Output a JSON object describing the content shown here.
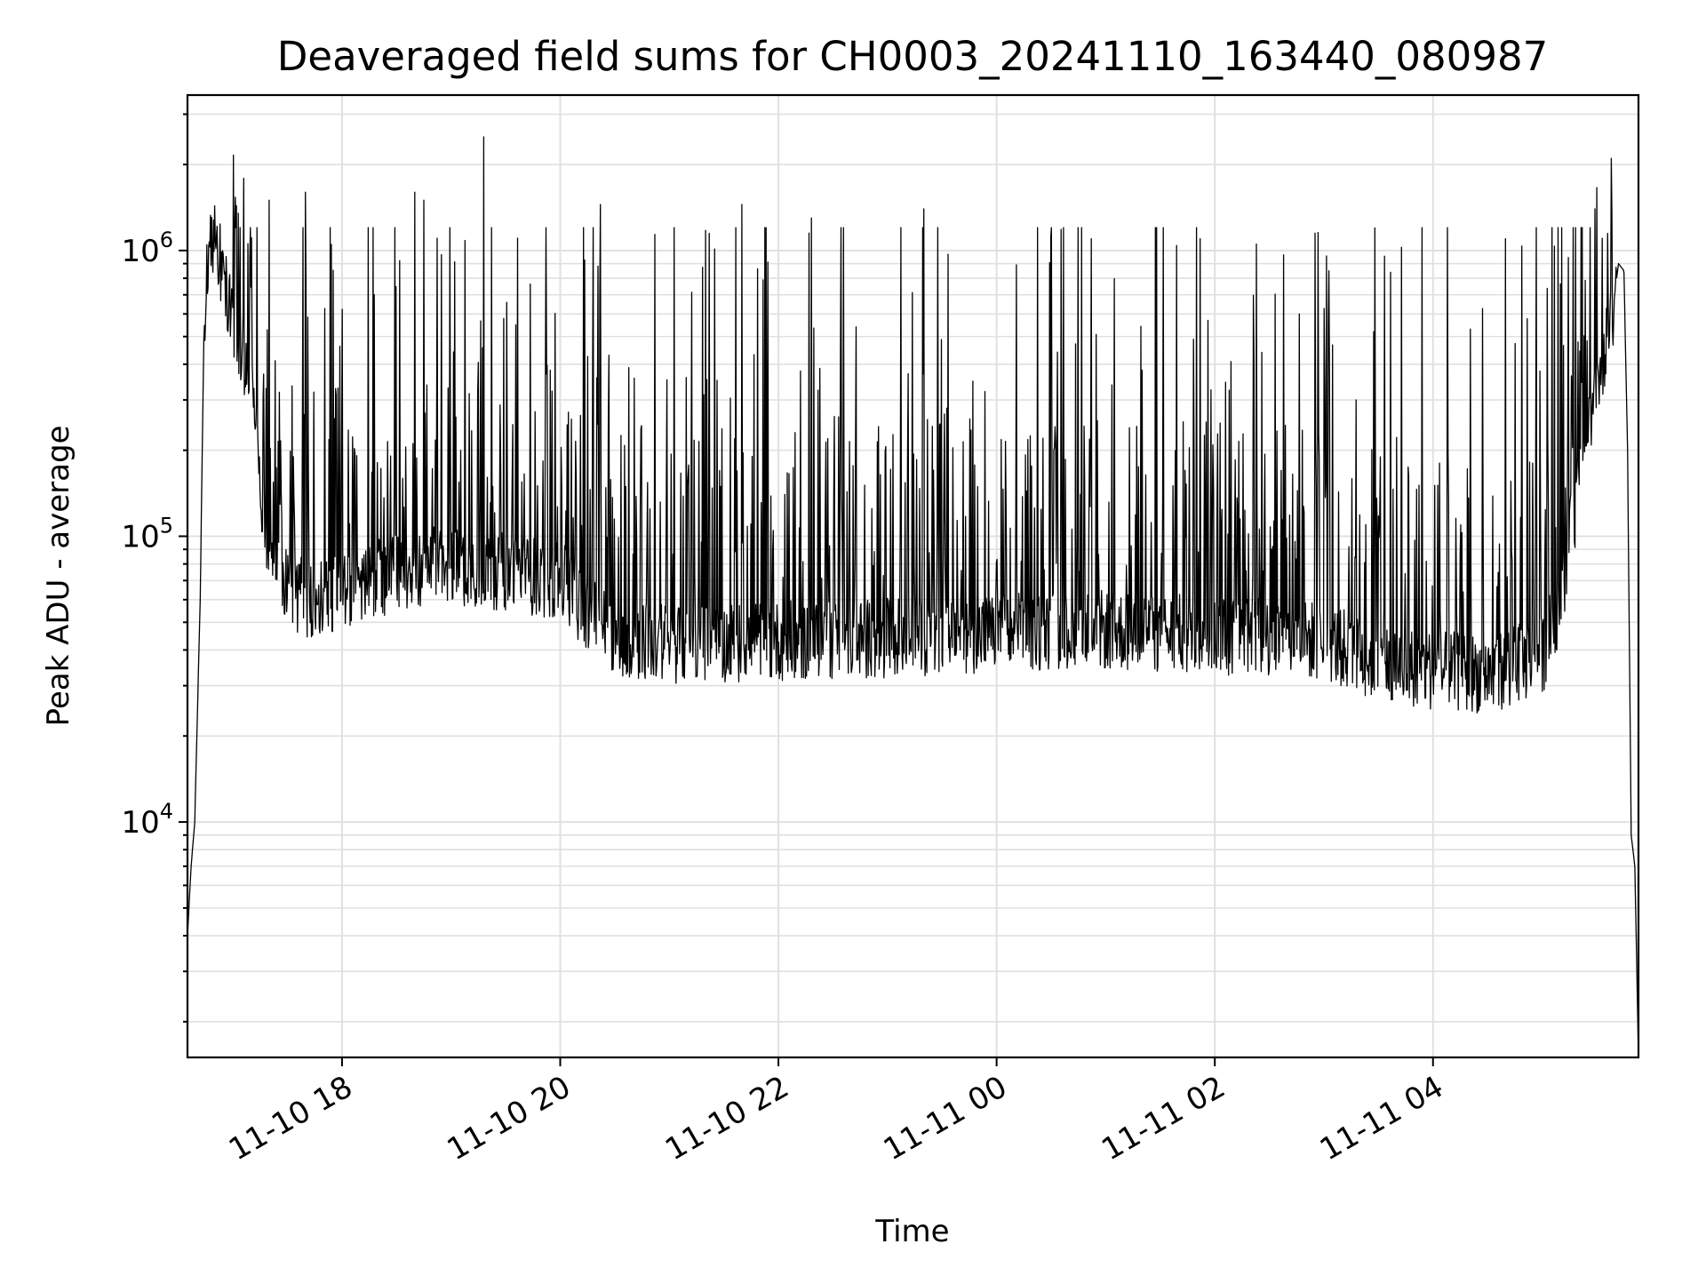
{
  "chart_data": {
    "type": "line",
    "title": "Deaveraged field sums for CH0003_20241110_163440_080987",
    "xlabel": "Time",
    "ylabel": "Peak ADU - average",
    "y_scale": "log",
    "ylim": [
      1500,
      3500000
    ],
    "xlim": [
      "2024-11-10 16:35",
      "2024-11-11 05:53"
    ],
    "grid": true,
    "legend": "none",
    "line_color": "#000000",
    "x_ticks": [
      "11-10 18",
      "11-10 20",
      "11-10 22",
      "11-11 00",
      "11-11 02",
      "11-11 04"
    ],
    "x_tick_times": [
      "2024-11-10 18:00",
      "2024-11-10 20:00",
      "2024-11-10 22:00",
      "2024-11-11 00:00",
      "2024-11-11 02:00",
      "2024-11-11 04:00"
    ],
    "y_ticks": [
      {
        "base": "10",
        "exp": "4",
        "value": 10000
      },
      {
        "base": "10",
        "exp": "5",
        "value": 100000
      },
      {
        "base": "10",
        "exp": "6",
        "value": 1000000
      }
    ],
    "series": [
      {
        "x": [
          "2024-11-10 16:35",
          "2024-11-10 16:37",
          "2024-11-10 16:39",
          "2024-11-10 16:42",
          "2024-11-10 16:44",
          "2024-11-10 16:47",
          "2024-11-10 16:50",
          "2024-11-10 16:53",
          "2024-11-10 16:56",
          "2024-11-10 17:00",
          "2024-11-10 17:05",
          "2024-11-10 17:10",
          "2024-11-10 17:15",
          "2024-11-10 17:20",
          "2024-11-10 17:30",
          "2024-11-10 17:45",
          "2024-11-10 18:00",
          "2024-11-10 18:30",
          "2024-11-10 19:00",
          "2024-11-10 19:30",
          "2024-11-10 20:00",
          "2024-11-10 20:15",
          "2024-11-10 20:30",
          "2024-11-10 21:00",
          "2024-11-10 22:00",
          "2024-11-10 23:00",
          "2024-11-11 00:00",
          "2024-11-11 01:00",
          "2024-11-11 02:00",
          "2024-11-11 03:00",
          "2024-11-11 03:30",
          "2024-11-11 04:00",
          "2024-11-11 04:30",
          "2024-11-11 05:00",
          "2024-11-11 05:10",
          "2024-11-11 05:20",
          "2024-11-11 05:30",
          "2024-11-11 05:37",
          "2024-11-11 05:42",
          "2024-11-11 05:45",
          "2024-11-11 05:47",
          "2024-11-11 05:49",
          "2024-11-11 05:51",
          "2024-11-11 05:53"
        ],
        "y": [
          4000,
          7000,
          10000,
          60000,
          500000,
          1200000,
          1100000,
          900000,
          700000,
          600000,
          450000,
          350000,
          150000,
          90000,
          65000,
          60000,
          65000,
          75000,
          80000,
          75000,
          70000,
          55000,
          44000,
          42000,
          43000,
          44000,
          46000,
          47000,
          45000,
          43000,
          36000,
          34000,
          33000,
          38000,
          60000,
          150000,
          350000,
          500000,
          900000,
          850000,
          200000,
          9000,
          7000,
          1500
        ]
      }
    ],
    "spikes": [
      {
        "x": "2024-11-10 19:18",
        "y": 2500000
      },
      {
        "x": "2024-11-11 05:38",
        "y": 2100000
      },
      {
        "x": "2024-11-10 17:40",
        "y": 1600000
      },
      {
        "x": "2024-11-10 18:40",
        "y": 1600000
      },
      {
        "x": "2024-11-10 18:45",
        "y": 1500000
      },
      {
        "x": "2024-11-10 17:20",
        "y": 1500000
      },
      {
        "x": "2024-11-10 20:22",
        "y": 1450000
      },
      {
        "x": "2024-11-10 21:40",
        "y": 1450000
      },
      {
        "x": "2024-11-10 23:20",
        "y": 1400000
      },
      {
        "x": "2024-11-10 22:18",
        "y": 1300000
      },
      {
        "x": "2024-11-11 03:28",
        "y": 1200000
      },
      {
        "x": "2024-11-11 00:52",
        "y": 1100000
      },
      {
        "x": "2024-11-11 01:52",
        "y": 1100000
      },
      {
        "x": "2024-11-11 02:55",
        "y": 1150000
      },
      {
        "x": "2024-11-11 04:40",
        "y": 1100000
      },
      {
        "x": "2024-11-11 05:29",
        "y": 1400000
      }
    ]
  }
}
